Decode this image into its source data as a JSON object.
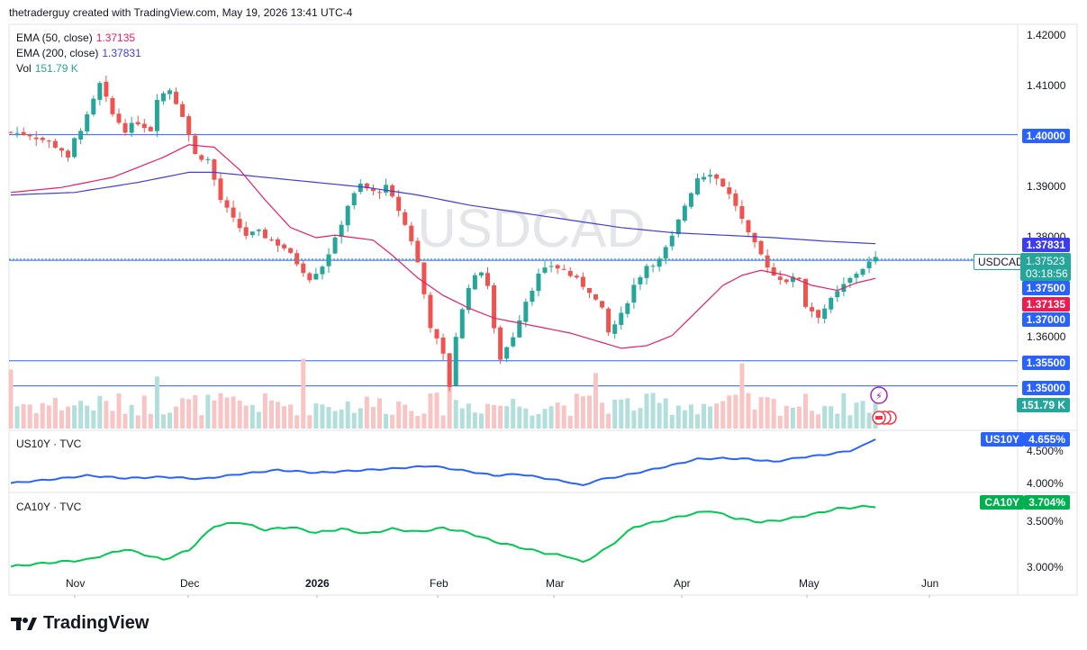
{
  "header": "thetraderguy created with TradingView.com, May 19, 2026 13:41 UTC-4",
  "legend": [
    {
      "label": "EMA (50, close)",
      "value": "1.37135",
      "color": "#e91e63"
    },
    {
      "label": "EMA (200, close)",
      "value": "1.37831",
      "color": "#3f3fd8"
    },
    {
      "label": "Vol",
      "value": "151.79 K",
      "color": "#26a69a"
    }
  ],
  "watermark": "USDCAD",
  "brand": "TradingView",
  "chart_data": [
    {
      "type": "candlestick",
      "symbol": "USDCAD",
      "price_axis_labels": [
        "1.42000",
        "1.41000",
        "1.40000",
        "1.39000",
        "1.38000",
        "1.37000",
        "1.36000",
        "1.35500",
        "1.35000"
      ],
      "ylim": [
        1.3465,
        1.4225
      ],
      "time_axis_labels": [
        "Nov",
        "Dec",
        "2026",
        "Feb",
        "Mar",
        "Apr",
        "May",
        "Jun"
      ],
      "horizontal_levels": [
        {
          "value": 1.4,
          "label": "1.40000"
        },
        {
          "value": 1.375,
          "label": "1.37500"
        },
        {
          "value": 1.355,
          "label": "1.35500"
        },
        {
          "value": 1.35,
          "label": "1.35000"
        }
      ],
      "current_price": {
        "symbol": "USDCAD",
        "value": "1.37523",
        "countdown": "03:18:56"
      },
      "ema50": {
        "name": "EMA (50, close)",
        "last": "1.37135",
        "path": [
          [
            0,
            1.3885
          ],
          [
            8,
            1.3895
          ],
          [
            16,
            1.3915
          ],
          [
            24,
            1.3955
          ],
          [
            28,
            1.398
          ],
          [
            32,
            1.3975
          ],
          [
            36,
            1.393
          ],
          [
            40,
            1.387
          ],
          [
            44,
            1.3815
          ],
          [
            48,
            1.3795
          ],
          [
            51,
            1.38
          ],
          [
            54,
            1.3795
          ],
          [
            57,
            1.379
          ],
          [
            60,
            1.376
          ],
          [
            64,
            1.3715
          ],
          [
            68,
            1.368
          ],
          [
            72,
            1.3655
          ],
          [
            76,
            1.3635
          ],
          [
            80,
            1.3625
          ],
          [
            84,
            1.3615
          ],
          [
            88,
            1.3605
          ],
          [
            92,
            1.359
          ],
          [
            96,
            1.3575
          ],
          [
            100,
            1.358
          ],
          [
            104,
            1.36
          ],
          [
            108,
            1.365
          ],
          [
            112,
            1.37
          ],
          [
            115,
            1.372
          ],
          [
            118,
            1.373
          ],
          [
            122,
            1.372
          ],
          [
            126,
            1.37
          ],
          [
            130,
            1.369
          ],
          [
            133,
            1.3705
          ],
          [
            136,
            1.3714
          ]
        ]
      },
      "ema200": {
        "name": "EMA (200, close)",
        "last": "1.37831",
        "path": [
          [
            0,
            1.388
          ],
          [
            10,
            1.3885
          ],
          [
            20,
            1.3905
          ],
          [
            28,
            1.3925
          ],
          [
            32,
            1.3925
          ],
          [
            40,
            1.3915
          ],
          [
            48,
            1.3905
          ],
          [
            56,
            1.3895
          ],
          [
            64,
            1.388
          ],
          [
            72,
            1.386
          ],
          [
            80,
            1.3845
          ],
          [
            88,
            1.383
          ],
          [
            96,
            1.3815
          ],
          [
            104,
            1.3805
          ],
          [
            112,
            1.38
          ],
          [
            120,
            1.3795
          ],
          [
            128,
            1.3788
          ],
          [
            136,
            1.3783
          ]
        ]
      },
      "close_path": [
        [
          0,
          1.4005
        ],
        [
          3,
          1.4
        ],
        [
          6,
          1.3985
        ],
        [
          8,
          1.397
        ],
        [
          9,
          1.395
        ],
        [
          10,
          1.399
        ],
        [
          12,
          1.4035
        ],
        [
          14,
          1.41
        ],
        [
          16,
          1.404
        ],
        [
          18,
          1.401
        ],
        [
          20,
          1.4025
        ],
        [
          22,
          1.401
        ],
        [
          23,
          1.4075
        ],
        [
          25,
          1.409
        ],
        [
          27,
          1.404
        ],
        [
          29,
          1.396
        ],
        [
          31,
          1.395
        ],
        [
          33,
          1.387
        ],
        [
          35,
          1.383
        ],
        [
          37,
          1.38
        ],
        [
          39,
          1.3805
        ],
        [
          41,
          1.379
        ],
        [
          43,
          1.3775
        ],
        [
          45,
          1.3745
        ],
        [
          47,
          1.3715
        ],
        [
          49,
          1.374
        ],
        [
          51,
          1.379
        ],
        [
          53,
          1.386
        ],
        [
          55,
          1.39
        ],
        [
          57,
          1.3885
        ],
        [
          59,
          1.3895
        ],
        [
          61,
          1.385
        ],
        [
          63,
          1.379
        ],
        [
          64,
          1.3745
        ],
        [
          66,
          1.362
        ],
        [
          68,
          1.356
        ],
        [
          69,
          1.35
        ],
        [
          70,
          1.36
        ],
        [
          72,
          1.37
        ],
        [
          74,
          1.373
        ],
        [
          75,
          1.37
        ],
        [
          76,
          1.361
        ],
        [
          77,
          1.3555
        ],
        [
          79,
          1.36
        ],
        [
          81,
          1.367
        ],
        [
          83,
          1.372
        ],
        [
          85,
          1.374
        ],
        [
          87,
          1.373
        ],
        [
          89,
          1.371
        ],
        [
          91,
          1.369
        ],
        [
          93,
          1.365
        ],
        [
          94,
          1.3605
        ],
        [
          96,
          1.364
        ],
        [
          98,
          1.37
        ],
        [
          100,
          1.374
        ],
        [
          102,
          1.375
        ],
        [
          104,
          1.3795
        ],
        [
          106,
          1.386
        ],
        [
          108,
          1.3915
        ],
        [
          110,
          1.3925
        ],
        [
          112,
          1.39
        ],
        [
          114,
          1.386
        ],
        [
          116,
          1.38
        ],
        [
          117,
          1.378
        ],
        [
          118,
          1.376
        ],
        [
          120,
          1.372
        ],
        [
          122,
          1.371
        ],
        [
          124,
          1.3715
        ],
        [
          125,
          1.366
        ],
        [
          127,
          1.364
        ],
        [
          129,
          1.367
        ],
        [
          131,
          1.37
        ],
        [
          133,
          1.3725
        ],
        [
          135,
          1.3745
        ],
        [
          136,
          1.37523
        ]
      ],
      "volume": {
        "last": "151.79 K"
      }
    },
    {
      "type": "line",
      "title": "US10Y · TVC",
      "symbol": "US10Y",
      "last": "4.655%",
      "axis_labels": [
        "4.500%",
        "4.000%"
      ],
      "ylim": [
        3.9,
        4.75
      ],
      "x": [
        0,
        6,
        12,
        18,
        24,
        30,
        36,
        42,
        48,
        54,
        60,
        66,
        72,
        76,
        80,
        84,
        88,
        90,
        92,
        96,
        100,
        104,
        108,
        112,
        116,
        120,
        124,
        128,
        132,
        134,
        136
      ],
      "values": [
        4.01,
        4.06,
        4.12,
        4.08,
        4.1,
        4.07,
        4.14,
        4.2,
        4.16,
        4.19,
        4.22,
        4.26,
        4.18,
        4.12,
        4.14,
        4.08,
        4.02,
        3.97,
        4.05,
        4.11,
        4.19,
        4.27,
        4.36,
        4.37,
        4.36,
        4.32,
        4.38,
        4.42,
        4.48,
        4.55,
        4.655
      ]
    },
    {
      "type": "line",
      "title": "CA10Y · TVC",
      "symbol": "CA10Y",
      "last": "3.704%",
      "axis_labels": [
        "3.500%",
        "3.000%"
      ],
      "ylim": [
        2.98,
        3.82
      ],
      "x": [
        0,
        6,
        12,
        18,
        24,
        28,
        32,
        36,
        40,
        44,
        48,
        52,
        56,
        60,
        64,
        68,
        72,
        76,
        80,
        84,
        88,
        90,
        94,
        98,
        102,
        106,
        110,
        114,
        118,
        122,
        126,
        130,
        134,
        136
      ],
      "values": [
        3.08,
        3.12,
        3.15,
        3.26,
        3.15,
        3.25,
        3.5,
        3.54,
        3.46,
        3.49,
        3.43,
        3.47,
        3.42,
        3.47,
        3.44,
        3.48,
        3.43,
        3.34,
        3.28,
        3.22,
        3.18,
        3.12,
        3.28,
        3.49,
        3.55,
        3.61,
        3.66,
        3.58,
        3.54,
        3.57,
        3.62,
        3.68,
        3.7,
        3.704
      ]
    }
  ]
}
